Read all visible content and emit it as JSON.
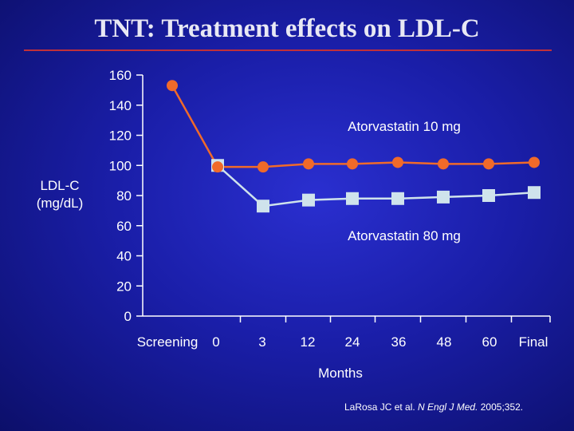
{
  "slide": {
    "title": "TNT: Treatment effects on LDL-C"
  },
  "chart_data": {
    "type": "line",
    "title": "",
    "xlabel": "Months",
    "ylabel_line1": "LDL-C",
    "ylabel_line2": "(mg/dL)",
    "categories": [
      "Screening",
      "0",
      "3",
      "12",
      "24",
      "36",
      "48",
      "60",
      "Final"
    ],
    "ylim": [
      0,
      160
    ],
    "yticks": [
      0,
      20,
      40,
      60,
      80,
      100,
      120,
      140,
      160
    ],
    "grid": false,
    "legend": "none",
    "series": [
      {
        "name": "Atorvastatin 10 mg",
        "color": "#f06a2a",
        "marker": "circle",
        "values": [
          153,
          99,
          99,
          101,
          101,
          102,
          101,
          101,
          102
        ]
      },
      {
        "name": "Atorvastatin 80 mg",
        "color": "#cfe3ec",
        "marker": "square",
        "values": [
          null,
          100,
          73,
          77,
          78,
          78,
          79,
          80,
          82
        ]
      }
    ]
  },
  "citation": {
    "authors": "LaRosa JC et al. ",
    "journal": "N Engl J Med.",
    "year_vol": " 2005;352."
  }
}
